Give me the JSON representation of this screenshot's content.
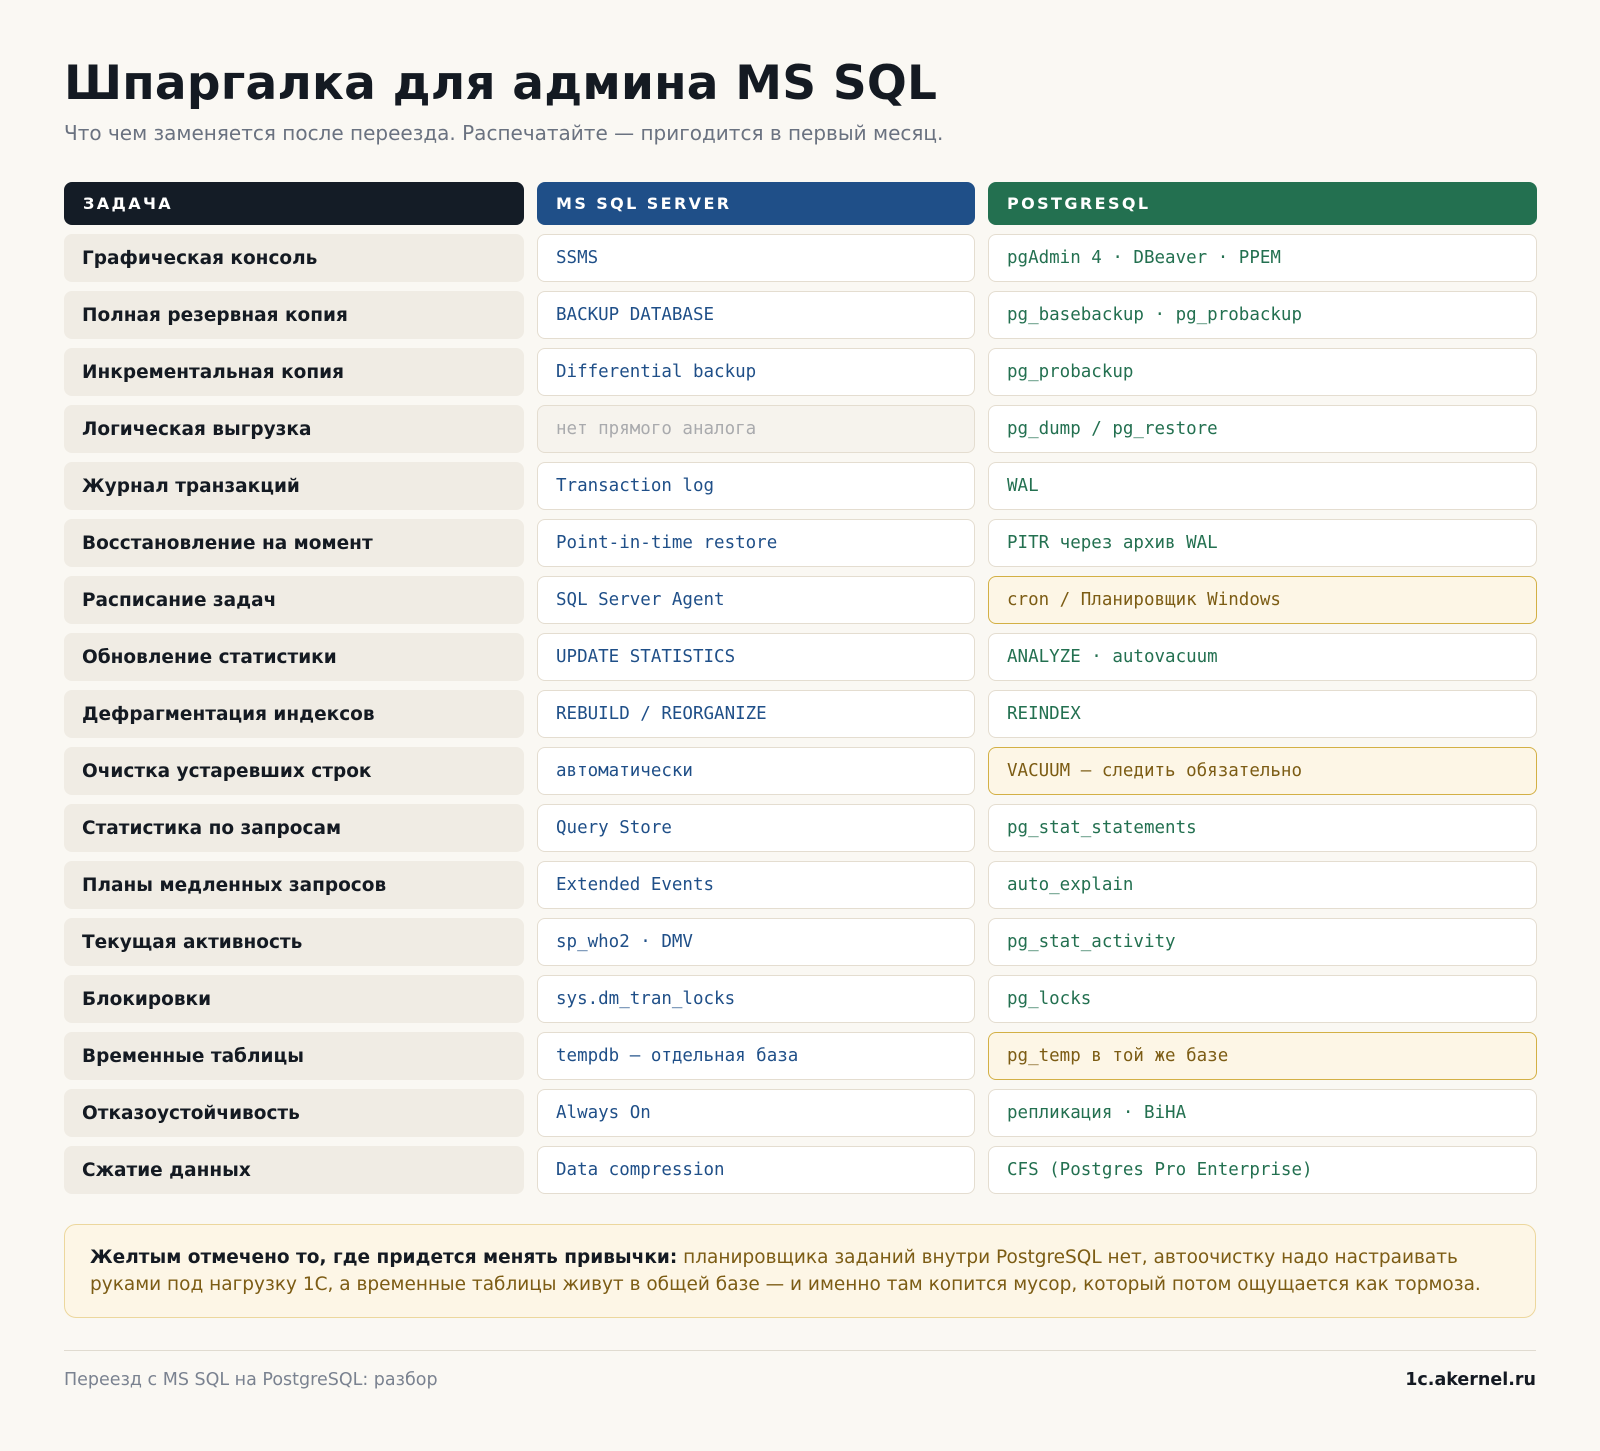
{
  "header": {
    "title": "Шпаргалка для админа MS SQL",
    "subtitle": "Что чем заменяется после переезда. Распечатайте — пригодится в первый месяц."
  },
  "table": {
    "columns": {
      "task": "ЗАДАЧА",
      "mssql": "MS SQL SERVER",
      "postgres": "POSTGRESQL"
    },
    "rows": [
      {
        "task": "Графическая консоль",
        "mssql": "SSMS",
        "postgres": "pgAdmin 4 · DBeaver · PPEM",
        "mssql_na": false,
        "highlight": false
      },
      {
        "task": "Полная резервная копия",
        "mssql": "BACKUP DATABASE",
        "postgres": "pg_basebackup · pg_probackup",
        "mssql_na": false,
        "highlight": false
      },
      {
        "task": "Инкрементальная копия",
        "mssql": "Differential backup",
        "postgres": "pg_probackup",
        "mssql_na": false,
        "highlight": false
      },
      {
        "task": "Логическая выгрузка",
        "mssql": "нет прямого аналога",
        "postgres": "pg_dump / pg_restore",
        "mssql_na": true,
        "highlight": false
      },
      {
        "task": "Журнал транзакций",
        "mssql": "Transaction log",
        "postgres": "WAL",
        "mssql_na": false,
        "highlight": false
      },
      {
        "task": "Восстановление на момент",
        "mssql": "Point-in-time restore",
        "postgres": "PITR через архив WAL",
        "mssql_na": false,
        "highlight": false
      },
      {
        "task": "Расписание задач",
        "mssql": "SQL Server Agent",
        "postgres": "cron / Планировщик Windows",
        "mssql_na": false,
        "highlight": true
      },
      {
        "task": "Обновление статистики",
        "mssql": "UPDATE STATISTICS",
        "postgres": "ANALYZE · autovacuum",
        "mssql_na": false,
        "highlight": false
      },
      {
        "task": "Дефрагментация индексов",
        "mssql": "REBUILD / REORGANIZE",
        "postgres": "REINDEX",
        "mssql_na": false,
        "highlight": false
      },
      {
        "task": "Очистка устаревших строк",
        "mssql": "автоматически",
        "postgres": "VACUUM — следить обязательно",
        "mssql_na": false,
        "highlight": true
      },
      {
        "task": "Статистика по запросам",
        "mssql": "Query Store",
        "postgres": "pg_stat_statements",
        "mssql_na": false,
        "highlight": false
      },
      {
        "task": "Планы медленных запросов",
        "mssql": "Extended Events",
        "postgres": "auto_explain",
        "mssql_na": false,
        "highlight": false
      },
      {
        "task": "Текущая активность",
        "mssql": "sp_who2 · DMV",
        "postgres": "pg_stat_activity",
        "mssql_na": false,
        "highlight": false
      },
      {
        "task": "Блокировки",
        "mssql": "sys.dm_tran_locks",
        "postgres": "pg_locks",
        "mssql_na": false,
        "highlight": false
      },
      {
        "task": "Временные таблицы",
        "mssql": "tempdb — отдельная база",
        "postgres": "pg_temp в той же базе",
        "mssql_na": false,
        "highlight": true
      },
      {
        "task": "Отказоустойчивость",
        "mssql": "Always On",
        "postgres": "репликация · BiHA",
        "mssql_na": false,
        "highlight": false
      },
      {
        "task": "Сжатие данных",
        "mssql": "Data compression",
        "postgres": "CFS (Postgres Pro Enterprise)",
        "mssql_na": false,
        "highlight": false
      }
    ]
  },
  "note": {
    "lead": "Желтым отмечено то, где придется менять привычки:",
    "body": "планировщика заданий внутри PostgreSQL нет, автоочистку надо настраивать руками под нагрузку 1С, а временные таблицы живут в общей базе — и именно там копится мусор, который потом ощущается как тормоза."
  },
  "footer": {
    "left": "Переезд с MS SQL на PostgreSQL: разбор",
    "right": "1c.akernel.ru"
  },
  "colors": {
    "background": "#faf8f3",
    "task_header": "#141c26",
    "mssql_accent": "#1f4f88",
    "postgres_accent": "#237050",
    "highlight_fill": "#fdf6e6",
    "highlight_border": "#d3b045",
    "highlight_text": "#7c5c14"
  }
}
